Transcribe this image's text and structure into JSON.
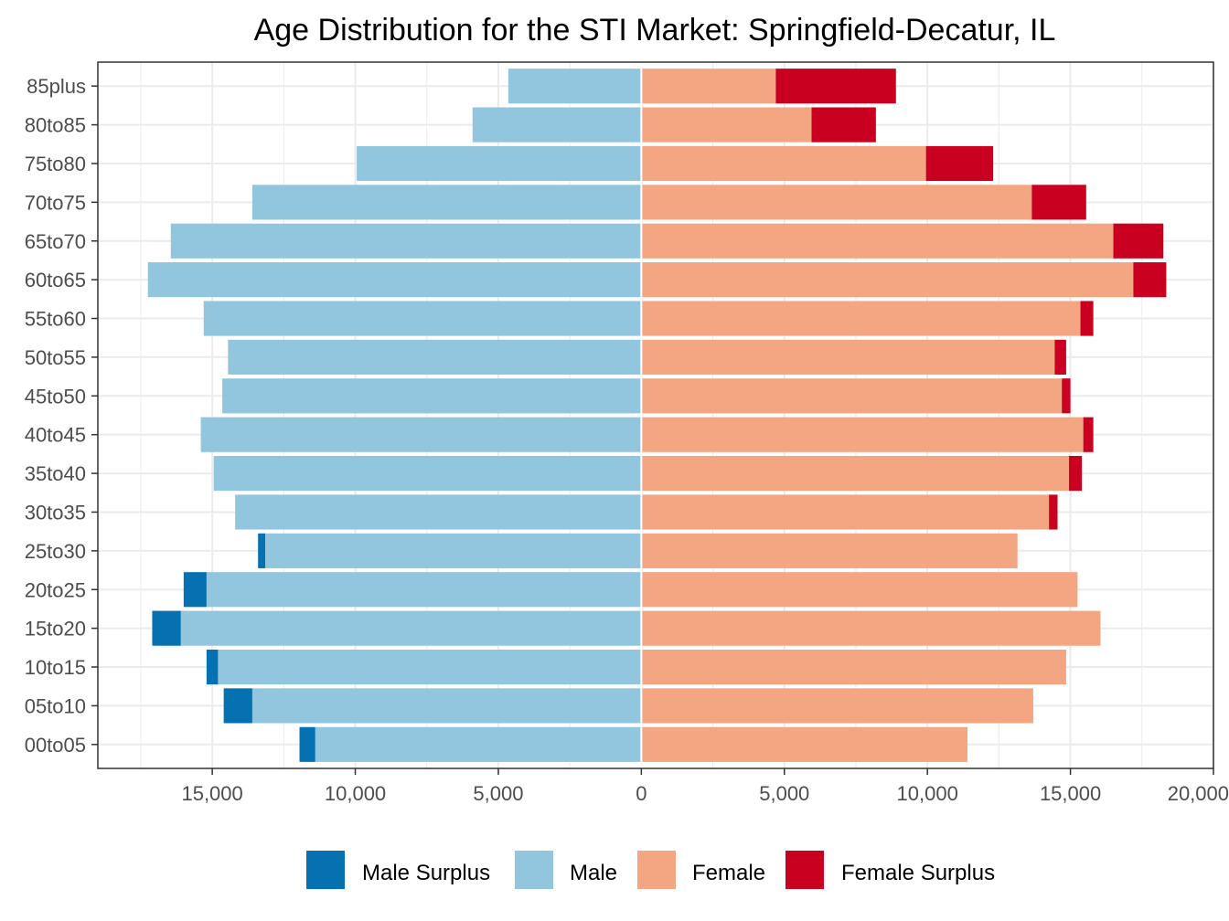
{
  "chart_data": {
    "type": "bar",
    "orientation": "horizontal",
    "layout": "population-pyramid",
    "title": "Age Distribution for the STI Market: Springfield-Decatur, IL",
    "xlabel": "",
    "ylabel": "",
    "xlim": [
      -19000,
      20000
    ],
    "x_ticks": [
      -15000,
      -10000,
      -5000,
      0,
      5000,
      10000,
      15000,
      20000
    ],
    "x_tick_labels": [
      "15,000",
      "10,000",
      "5,000",
      "0",
      "5,000",
      "10,000",
      "15,000",
      "20,000"
    ],
    "grid": true,
    "legend_position": "bottom",
    "categories": [
      "00to05",
      "05to10",
      "10to15",
      "15to20",
      "20to25",
      "25to30",
      "30to35",
      "35to40",
      "40to45",
      "45to50",
      "50to55",
      "55to60",
      "60to65",
      "65to70",
      "70to75",
      "75to80",
      "80to85",
      "85plus"
    ],
    "series": [
      {
        "name": "Male Surplus",
        "side": "left",
        "color": "#0571b0",
        "values": [
          550,
          1000,
          400,
          1000,
          800,
          250,
          0,
          0,
          0,
          0,
          0,
          0,
          0,
          0,
          0,
          0,
          0,
          0
        ]
      },
      {
        "name": "Male",
        "side": "left",
        "color": "#92c5de",
        "values": [
          11400,
          13600,
          14800,
          16100,
          15200,
          13150,
          14200,
          14950,
          15400,
          14650,
          14450,
          15300,
          17250,
          16450,
          13600,
          9950,
          5900,
          4650
        ]
      },
      {
        "name": "Female",
        "side": "right",
        "color": "#f4a582",
        "values": [
          11400,
          13700,
          14850,
          16050,
          15250,
          13150,
          14250,
          14950,
          15450,
          14700,
          14450,
          15350,
          17200,
          16500,
          13650,
          9950,
          5950,
          4700
        ]
      },
      {
        "name": "Female Surplus",
        "side": "right",
        "color": "#ca0020",
        "values": [
          0,
          0,
          0,
          0,
          0,
          0,
          300,
          450,
          350,
          300,
          400,
          450,
          1150,
          1750,
          1900,
          2350,
          2250,
          4200
        ]
      }
    ]
  }
}
